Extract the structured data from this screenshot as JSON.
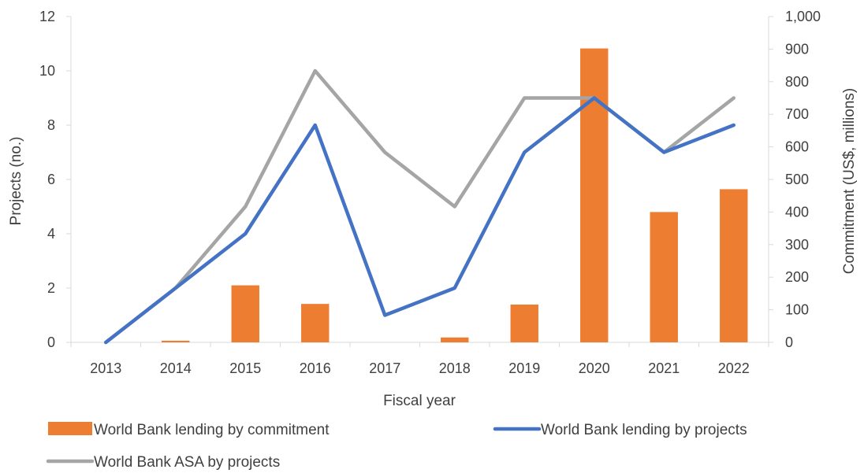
{
  "chart_data": {
    "type": "bar+line",
    "categories": [
      "2013",
      "2014",
      "2015",
      "2016",
      "2017",
      "2018",
      "2019",
      "2020",
      "2021",
      "2022"
    ],
    "xlabel": "Fiscal year",
    "ylabel_left": "Projects (no.)",
    "ylabel_right": "Commitment (US$, millions)",
    "ylim_left": [
      0,
      12
    ],
    "yticks_left": [
      "0",
      "2",
      "4",
      "6",
      "8",
      "10",
      "12"
    ],
    "ylim_right": [
      0,
      1000
    ],
    "yticks_right": [
      "0",
      "100",
      "200",
      "300",
      "400",
      "500",
      "600",
      "700",
      "800",
      "900",
      "1,000"
    ],
    "grid": false,
    "legend_position": "bottom",
    "series": [
      {
        "name": "World Bank lending by commitment",
        "kind": "bar",
        "axis": "right",
        "color": "#ED7D31",
        "values": [
          0,
          5,
          175,
          118,
          0,
          15,
          116,
          902,
          400,
          470
        ]
      },
      {
        "name": "World Bank lending by projects",
        "kind": "line",
        "axis": "left",
        "color": "#4472C4",
        "values": [
          0,
          2,
          4,
          8,
          1,
          2,
          7,
          9,
          7,
          8
        ]
      },
      {
        "name": "World Bank ASA by projects",
        "kind": "line",
        "axis": "left",
        "color": "#A5A5A5",
        "values": [
          0,
          2,
          5,
          10,
          7,
          5,
          9,
          9,
          7,
          9
        ]
      }
    ]
  }
}
